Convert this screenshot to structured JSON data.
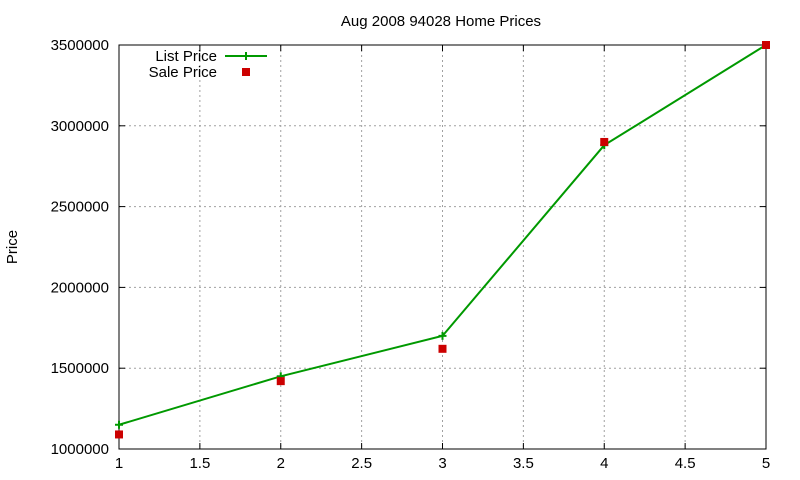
{
  "chart_data": {
    "type": "line",
    "title": "Aug 2008 94028 Home Prices",
    "xlabel": "",
    "ylabel": "Price",
    "xlim": [
      1,
      5
    ],
    "ylim": [
      1000000,
      3500000
    ],
    "x_ticks": [
      1,
      1.5,
      2,
      2.5,
      3,
      3.5,
      4,
      4.5,
      5
    ],
    "x_tick_labels": [
      "1",
      "1.5",
      "2",
      "2.5",
      "3",
      "3.5",
      "4",
      "4.5",
      "5"
    ],
    "y_ticks": [
      1000000,
      1500000,
      2000000,
      2500000,
      3000000,
      3500000
    ],
    "y_tick_labels": [
      "1000000",
      "1500000",
      "2000000",
      "2500000",
      "3000000",
      "3500000"
    ],
    "grid": true,
    "legend_position": "top-left",
    "series": [
      {
        "name": "List Price",
        "style": "line+cross",
        "color": "#009900",
        "x": [
          1,
          2,
          3,
          4,
          5
        ],
        "y": [
          1150000,
          1450000,
          1700000,
          2880000,
          3500000
        ]
      },
      {
        "name": "Sale Price",
        "style": "square",
        "color": "#cc0000",
        "x": [
          1,
          2,
          3,
          4,
          5
        ],
        "y": [
          1090000,
          1420000,
          1620000,
          2900000,
          3500000
        ]
      }
    ]
  }
}
